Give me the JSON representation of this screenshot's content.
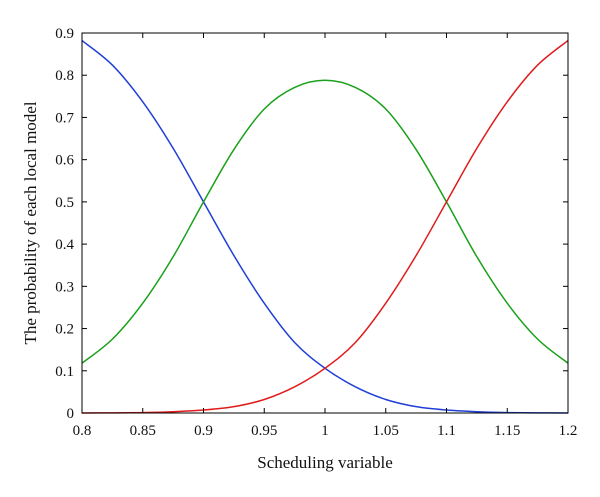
{
  "chart_data": {
    "type": "line",
    "title": "",
    "xlabel": "Scheduling variable",
    "ylabel": "The probability of each local model",
    "xlim": [
      0.8,
      1.2
    ],
    "ylim": [
      0,
      0.9
    ],
    "xticks": [
      0.8,
      0.85,
      0.9,
      0.95,
      1,
      1.05,
      1.1,
      1.15,
      1.2
    ],
    "xtick_labels": [
      "0.8",
      "0.85",
      "0.9",
      "0.95",
      "1",
      "1.05",
      "1.1",
      "1.15",
      "1.2"
    ],
    "yticks": [
      0,
      0.1,
      0.2,
      0.3,
      0.4,
      0.5,
      0.6,
      0.7,
      0.8,
      0.9
    ],
    "ytick_labels": [
      "0",
      "0.1",
      "0.2",
      "0.3",
      "0.4",
      "0.5",
      "0.6",
      "0.7",
      "0.8",
      "0.9"
    ],
    "grid": false,
    "legend": "none",
    "x": [
      0.8,
      0.825,
      0.85,
      0.875,
      0.9,
      0.925,
      0.95,
      0.975,
      1.0,
      1.025,
      1.05,
      1.075,
      1.1,
      1.125,
      1.15,
      1.175,
      1.2
    ],
    "series": [
      {
        "color": "#1f3fd6",
        "values": [
          0.882,
          0.824,
          0.737,
          0.627,
          0.5,
          0.373,
          0.26,
          0.167,
          0.106,
          0.062,
          0.032,
          0.015,
          0.007,
          0.003,
          0.001,
          0.0003,
          0.0001
        ]
      },
      {
        "color": "#1aa01a",
        "values": [
          0.118,
          0.175,
          0.26,
          0.37,
          0.5,
          0.624,
          0.72,
          0.771,
          0.788,
          0.771,
          0.72,
          0.624,
          0.5,
          0.37,
          0.26,
          0.175,
          0.118
        ]
      },
      {
        "color": "#e01b1b",
        "values": [
          0.0001,
          0.0003,
          0.001,
          0.003,
          0.007,
          0.015,
          0.032,
          0.062,
          0.106,
          0.167,
          0.26,
          0.373,
          0.5,
          0.627,
          0.737,
          0.824,
          0.882
        ]
      }
    ]
  }
}
